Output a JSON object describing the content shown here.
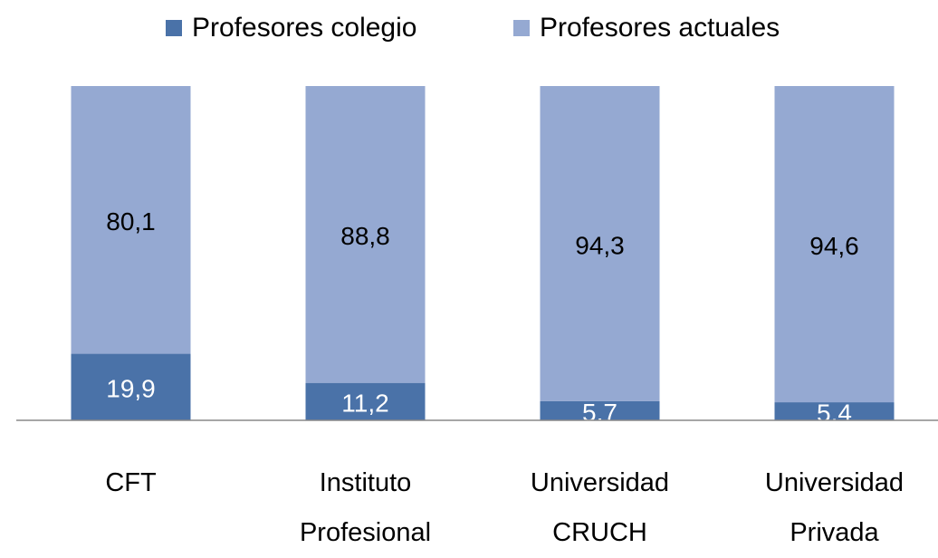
{
  "chart_data": {
    "type": "stacked-bar",
    "categories": [
      "CFT",
      "Instituto Profesional",
      "Universidad CRUCH",
      "Universidad Privada"
    ],
    "series": [
      {
        "name": "Profesores colegio",
        "color": "#4a72a8",
        "label_color": "#ffffff",
        "values": [
          19.9,
          11.2,
          5.7,
          5.4
        ],
        "value_labels": [
          "19,9",
          "11,2",
          "5,7",
          "5,4"
        ]
      },
      {
        "name": "Profesores actuales",
        "color": "#95a9d2",
        "label_color": "#000000",
        "values": [
          80.1,
          88.8,
          94.3,
          94.6
        ],
        "value_labels": [
          "80,1",
          "88,8",
          "94,3",
          "94,6"
        ]
      }
    ],
    "legend": "top"
  }
}
